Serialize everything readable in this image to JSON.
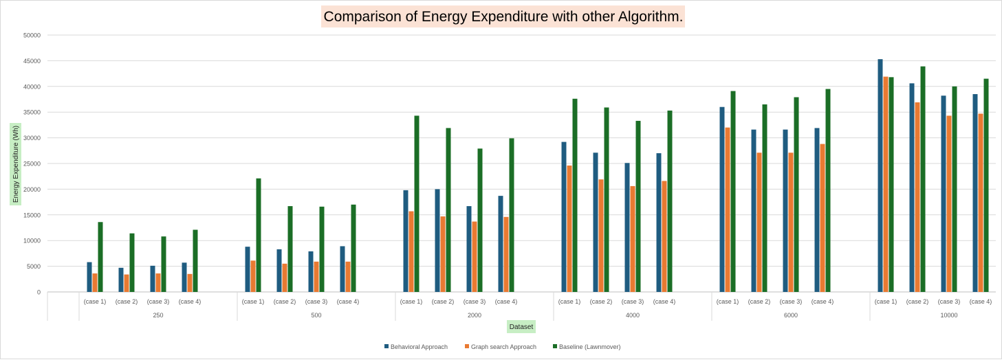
{
  "chart_data": {
    "type": "bar",
    "title": "Comparison of Energy Expenditure  with other Algorithm.",
    "xlabel": "Dataset",
    "ylabel": "Energy Expenditure (Wh)",
    "ylim": [
      0,
      50000
    ],
    "yticks": [
      0,
      5000,
      10000,
      15000,
      20000,
      25000,
      30000,
      35000,
      40000,
      45000,
      50000
    ],
    "grid": true,
    "legend_position": "bottom",
    "groups": [
      {
        "label": "250",
        "cases": [
          "(case 1)",
          "(case 2)",
          "(case 3)",
          "(case 4)"
        ]
      },
      {
        "label": "500",
        "cases": [
          "(case 1)",
          "(case 2)",
          "(case 3)",
          "(case 4)"
        ]
      },
      {
        "label": "2000",
        "cases": [
          "(case 1)",
          "(case 2)",
          "(case 3)",
          "(case 4)"
        ]
      },
      {
        "label": "4000",
        "cases": [
          "(case 1)",
          "(case 2)",
          "(case 3)",
          "(case 4)"
        ]
      },
      {
        "label": "6000",
        "cases": [
          "(case 1)",
          "(case 2)",
          "(case 3)",
          "(case 4)"
        ]
      },
      {
        "label": "10000",
        "cases": [
          "(case 1)",
          "(case 2)",
          "(case 3)",
          "(case 4)"
        ]
      }
    ],
    "series": [
      {
        "name": "Behavioral  Approach",
        "color": "#1f5c80",
        "values": [
          5800,
          4700,
          5100,
          5700,
          8800,
          8300,
          7900,
          8900,
          19800,
          20000,
          16700,
          18700,
          29200,
          27100,
          25100,
          27000,
          36000,
          31600,
          31600,
          31900,
          45300,
          40600,
          38200,
          38500
        ]
      },
      {
        "name": "Graph search  Approach",
        "color": "#e97a32",
        "values": [
          3600,
          3400,
          3600,
          3500,
          6100,
          5500,
          5900,
          5900,
          15700,
          14700,
          13700,
          14600,
          24600,
          21900,
          20600,
          21600,
          32000,
          27100,
          27100,
          28800,
          41900,
          36900,
          34300,
          34700
        ]
      },
      {
        "name": "Baseline  (Lawnmover)",
        "color": "#1b6e26",
        "values": [
          13600,
          11400,
          10800,
          12100,
          22100,
          16700,
          16600,
          17000,
          34300,
          31900,
          27900,
          29900,
          37600,
          35900,
          33300,
          35300,
          39100,
          36500,
          37900,
          39500,
          41800,
          43900,
          40000,
          41500
        ]
      }
    ]
  }
}
